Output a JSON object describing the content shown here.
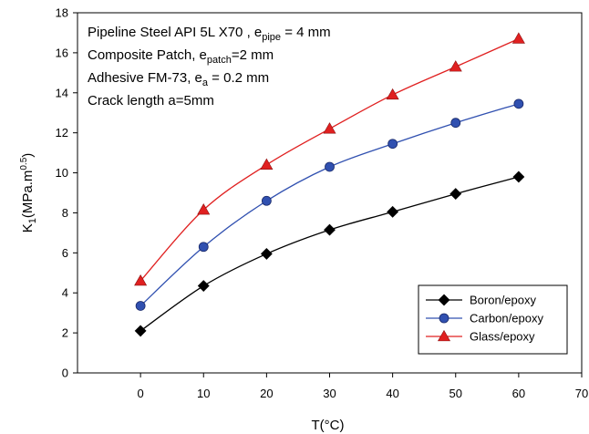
{
  "chart_data": {
    "type": "line",
    "xlabel": "T(°C)",
    "ylabel": {
      "main": "K",
      "sub": "1",
      "unit_open": "(MPa.m",
      "sup": "0.5",
      "unit_close": ")"
    },
    "xlim": [
      -10,
      70
    ],
    "ylim": [
      0,
      18
    ],
    "xticks": [
      0,
      10,
      20,
      30,
      40,
      50,
      60,
      70
    ],
    "yticks": [
      0,
      2,
      4,
      6,
      8,
      10,
      12,
      14,
      16,
      18
    ],
    "x": [
      0,
      10,
      20,
      30,
      40,
      50,
      60
    ],
    "series": [
      {
        "name": "Boron/epoxy",
        "color": "#000000",
        "marker": "diamond",
        "values": [
          2.1,
          4.35,
          5.95,
          7.15,
          8.05,
          8.95,
          9.8
        ]
      },
      {
        "name": "Carbon/epoxy",
        "color": "#3050b0",
        "marker": "circle",
        "values": [
          3.35,
          6.3,
          8.6,
          10.3,
          11.45,
          12.5,
          13.45
        ]
      },
      {
        "name": "Glass/epoxy",
        "color": "#e02020",
        "marker": "triangle",
        "values": [
          4.6,
          8.15,
          10.4,
          12.2,
          13.9,
          15.3,
          16.7
        ]
      }
    ],
    "legend_position": "bottom-right",
    "grid": false,
    "annotations": [
      {
        "parts": [
          {
            "t": "Pipeline Steel API 5L X70 , e"
          },
          {
            "t": "pipe",
            "sub": true
          },
          {
            "t": " = 4 mm"
          }
        ]
      },
      {
        "parts": [
          {
            "t": "Composite Patch, e"
          },
          {
            "t": "patch",
            "sub": true
          },
          {
            "t": "=2 mm"
          }
        ]
      },
      {
        "parts": [
          {
            "t": "Adhesive FM-73, e"
          },
          {
            "t": "a",
            "sub": true
          },
          {
            "t": " = 0.2 mm"
          }
        ]
      },
      {
        "parts": [
          {
            "t": "Crack length a=5mm"
          }
        ]
      }
    ]
  }
}
